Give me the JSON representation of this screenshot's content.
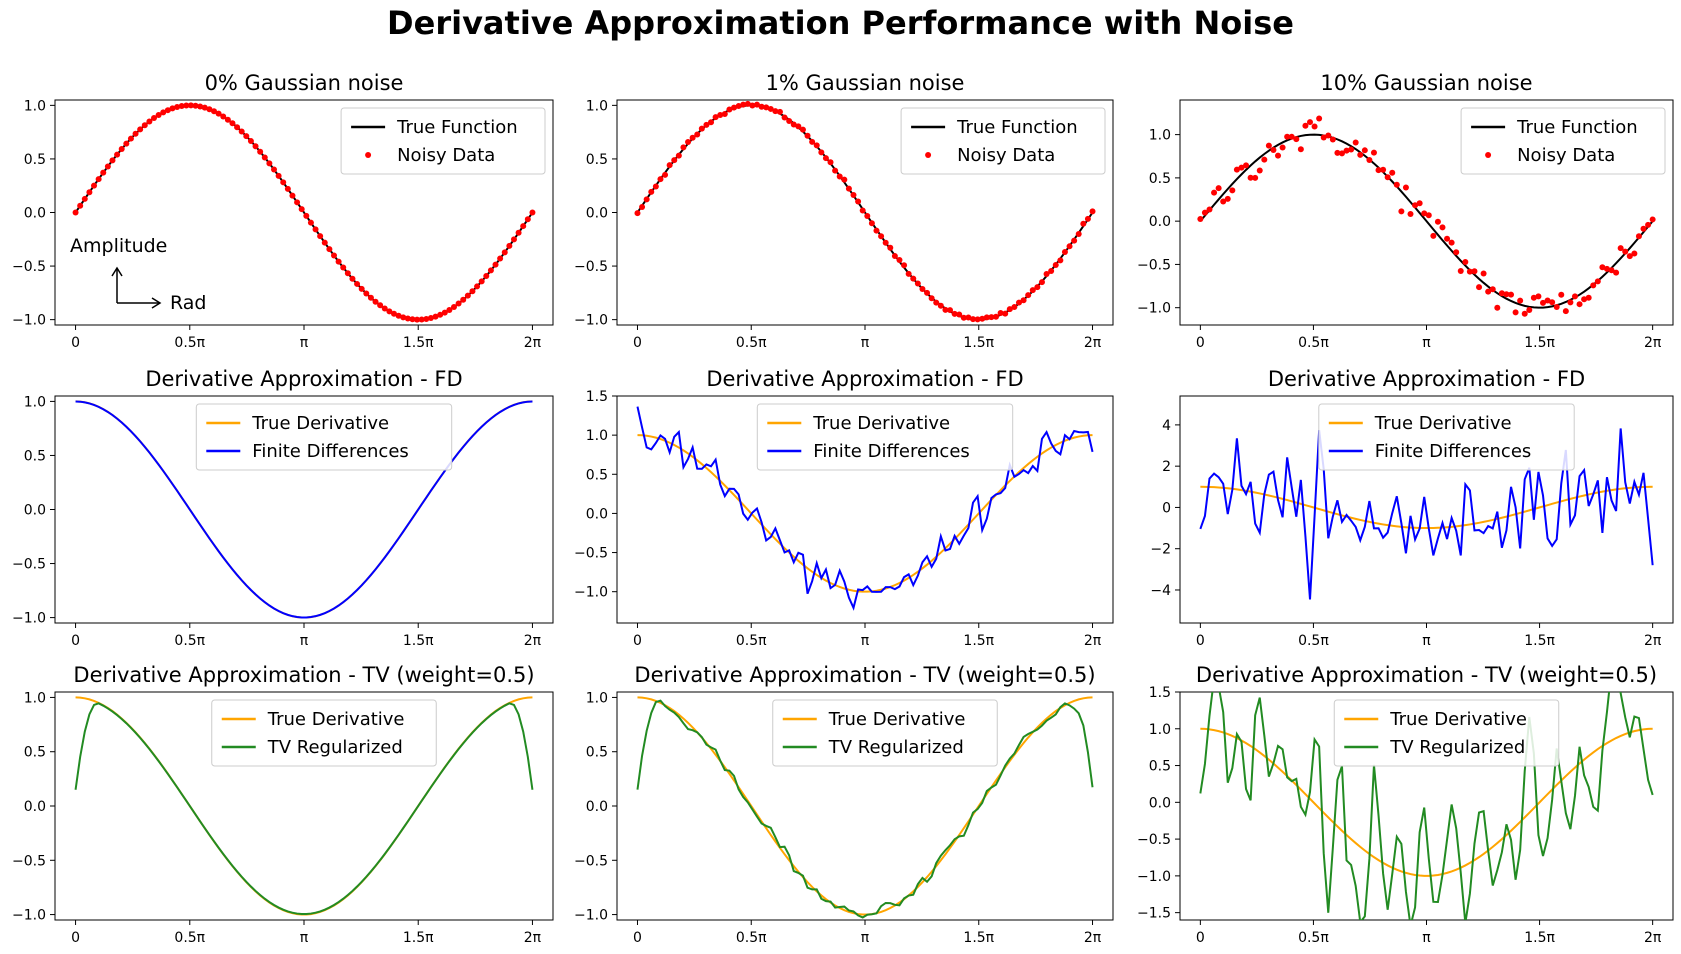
{
  "figure": {
    "title": "Derivative Approximation Performance with Noise",
    "annotation": {
      "y_arrow_label": "Amplitude",
      "x_arrow_label": "Rad"
    }
  },
  "colors": {
    "true_function": "#000000",
    "noisy_data": "#ff0000",
    "true_derivative": "#ffa500",
    "finite_differences": "#0000ff",
    "tv_regularized": "#228b22"
  },
  "chart_data": [
    {
      "type": "line+scatter",
      "title": "0% Gaussian noise",
      "noise_level": 0.0,
      "xlim": [
        0,
        6.2832
      ],
      "x_ticks": [
        "0",
        "0.5π",
        "π",
        "1.5π",
        "2π"
      ],
      "ylim": [
        -1.05,
        1.05
      ],
      "y_ticks": [
        "1.0",
        "0.5",
        "0.0",
        "−0.5",
        "−1.0"
      ],
      "legend_position": "upper right",
      "series": [
        {
          "name": "True Function",
          "kind": "line",
          "function": "sin(x)",
          "x_range": [
            0,
            6.2832
          ],
          "n_points": 100
        },
        {
          "name": "Noisy Data",
          "kind": "scatter",
          "function": "sin(x) + noise",
          "noise_std": 0.0,
          "x_range": [
            0,
            6.2832
          ],
          "n_points": 100
        }
      ],
      "grid": false
    },
    {
      "type": "line+scatter",
      "title": "1% Gaussian noise",
      "noise_level": 0.01,
      "xlim": [
        0,
        6.2832
      ],
      "x_ticks": [
        "0",
        "0.5π",
        "π",
        "1.5π",
        "2π"
      ],
      "ylim": [
        -1.05,
        1.05
      ],
      "y_ticks": [
        "1.0",
        "0.5",
        "0.0",
        "−0.5",
        "−1.0"
      ],
      "legend_position": "upper right",
      "series": [
        {
          "name": "True Function",
          "kind": "line",
          "function": "sin(x)",
          "x_range": [
            0,
            6.2832
          ],
          "n_points": 100
        },
        {
          "name": "Noisy Data",
          "kind": "scatter",
          "function": "sin(x) + noise",
          "noise_std": 0.01,
          "x_range": [
            0,
            6.2832
          ],
          "n_points": 100
        }
      ],
      "grid": false
    },
    {
      "type": "line+scatter",
      "title": "10% Gaussian noise",
      "noise_level": 0.1,
      "xlim": [
        0,
        6.2832
      ],
      "x_ticks": [
        "0",
        "0.5π",
        "π",
        "1.5π",
        "2π"
      ],
      "ylim": [
        -1.2,
        1.4
      ],
      "y_ticks": [
        "1.0",
        "0.5",
        "0.0",
        "−0.5",
        "−1.0"
      ],
      "legend_position": "upper right",
      "series": [
        {
          "name": "True Function",
          "kind": "line",
          "function": "sin(x)",
          "x_range": [
            0,
            6.2832
          ],
          "n_points": 100
        },
        {
          "name": "Noisy Data",
          "kind": "scatter",
          "function": "sin(x) + noise",
          "noise_std": 0.1,
          "x_range": [
            0,
            6.2832
          ],
          "n_points": 100
        }
      ],
      "grid": false
    },
    {
      "type": "line",
      "title": "Derivative Approximation - FD",
      "noise_level": 0.0,
      "xlim": [
        0,
        6.2832
      ],
      "x_ticks": [
        "0",
        "0.5π",
        "π",
        "1.5π",
        "2π"
      ],
      "ylim": [
        -1.05,
        1.05
      ],
      "y_ticks": [
        "1.0",
        "0.5",
        "0.0",
        "−0.5",
        "−1.0"
      ],
      "legend_position": "upper center",
      "series": [
        {
          "name": "True Derivative",
          "kind": "line",
          "function": "cos(x)",
          "x_range": [
            0,
            6.2832
          ],
          "n_points": 100
        },
        {
          "name": "Finite Differences",
          "kind": "line",
          "function": "finite difference of noisy sin(x)",
          "noise_std": 0.0,
          "x_range": [
            0,
            6.2832
          ],
          "n_points": 100
        }
      ],
      "grid": false
    },
    {
      "type": "line",
      "title": "Derivative Approximation - FD",
      "noise_level": 0.01,
      "xlim": [
        0,
        6.2832
      ],
      "x_ticks": [
        "0",
        "0.5π",
        "π",
        "1.5π",
        "2π"
      ],
      "ylim": [
        -1.4,
        1.5
      ],
      "y_ticks": [
        "1.5",
        "1.0",
        "0.5",
        "0.0",
        "−0.5",
        "−1.0"
      ],
      "legend_position": "upper center",
      "series": [
        {
          "name": "True Derivative",
          "kind": "line",
          "function": "cos(x)",
          "x_range": [
            0,
            6.2832
          ],
          "n_points": 100
        },
        {
          "name": "Finite Differences",
          "kind": "line",
          "function": "finite difference of noisy sin(x)",
          "noise_std": 0.01,
          "x_range": [
            0,
            6.2832
          ],
          "n_points": 100
        }
      ],
      "grid": false
    },
    {
      "type": "line",
      "title": "Derivative Approximation - FD",
      "noise_level": 0.1,
      "xlim": [
        0,
        6.2832
      ],
      "x_ticks": [
        "0",
        "0.5π",
        "π",
        "1.5π",
        "2π"
      ],
      "ylim": [
        -5.6,
        5.4
      ],
      "y_ticks": [
        "4",
        "2",
        "0",
        "−2",
        "−4"
      ],
      "legend_position": "upper center",
      "series": [
        {
          "name": "True Derivative",
          "kind": "line",
          "function": "cos(x)",
          "x_range": [
            0,
            6.2832
          ],
          "n_points": 100
        },
        {
          "name": "Finite Differences",
          "kind": "line",
          "function": "finite difference of noisy sin(x)",
          "noise_std": 0.1,
          "x_range": [
            0,
            6.2832
          ],
          "n_points": 100
        }
      ],
      "grid": false
    },
    {
      "type": "line",
      "title": "Derivative Approximation - TV (weight=0.5)",
      "noise_level": 0.0,
      "xlim": [
        0,
        6.2832
      ],
      "x_ticks": [
        "0",
        "0.5π",
        "π",
        "1.5π",
        "2π"
      ],
      "ylim": [
        -1.05,
        1.05
      ],
      "y_ticks": [
        "1.0",
        "0.5",
        "0.0",
        "−0.5",
        "−1.0"
      ],
      "legend_position": "upper center",
      "series": [
        {
          "name": "True Derivative",
          "kind": "line",
          "function": "cos(x)",
          "x_range": [
            0,
            6.2832
          ],
          "n_points": 100
        },
        {
          "name": "TV Regularized",
          "kind": "line",
          "function": "TV-regularized derivative of noisy sin(x)",
          "noise_std": 0.0,
          "x_range": [
            0,
            6.2832
          ],
          "n_points": 100
        }
      ],
      "grid": false
    },
    {
      "type": "line",
      "title": "Derivative Approximation - TV (weight=0.5)",
      "noise_level": 0.01,
      "xlim": [
        0,
        6.2832
      ],
      "x_ticks": [
        "0",
        "0.5π",
        "π",
        "1.5π",
        "2π"
      ],
      "ylim": [
        -1.05,
        1.05
      ],
      "y_ticks": [
        "1.0",
        "0.5",
        "0.0",
        "−0.5",
        "−1.0"
      ],
      "legend_position": "upper center",
      "series": [
        {
          "name": "True Derivative",
          "kind": "line",
          "function": "cos(x)",
          "x_range": [
            0,
            6.2832
          ],
          "n_points": 100
        },
        {
          "name": "TV Regularized",
          "kind": "line",
          "function": "TV-regularized derivative of noisy sin(x)",
          "noise_std": 0.01,
          "x_range": [
            0,
            6.2832
          ],
          "n_points": 100
        }
      ],
      "grid": false
    },
    {
      "type": "line",
      "title": "Derivative Approximation - TV (weight=0.5)",
      "noise_level": 0.1,
      "xlim": [
        0,
        6.2832
      ],
      "x_ticks": [
        "0",
        "0.5π",
        "π",
        "1.5π",
        "2π"
      ],
      "ylim": [
        -1.6,
        1.5
      ],
      "y_ticks": [
        "1.5",
        "1.0",
        "0.5",
        "0.0",
        "−0.5",
        "−1.0",
        "−1.5"
      ],
      "legend_position": "upper center",
      "series": [
        {
          "name": "True Derivative",
          "kind": "line",
          "function": "cos(x)",
          "x_range": [
            0,
            6.2832
          ],
          "n_points": 100
        },
        {
          "name": "TV Regularized",
          "kind": "line",
          "function": "TV-regularized derivative of noisy sin(x)",
          "noise_std": 0.1,
          "x_range": [
            0,
            6.2832
          ],
          "n_points": 100
        }
      ],
      "grid": false
    }
  ]
}
